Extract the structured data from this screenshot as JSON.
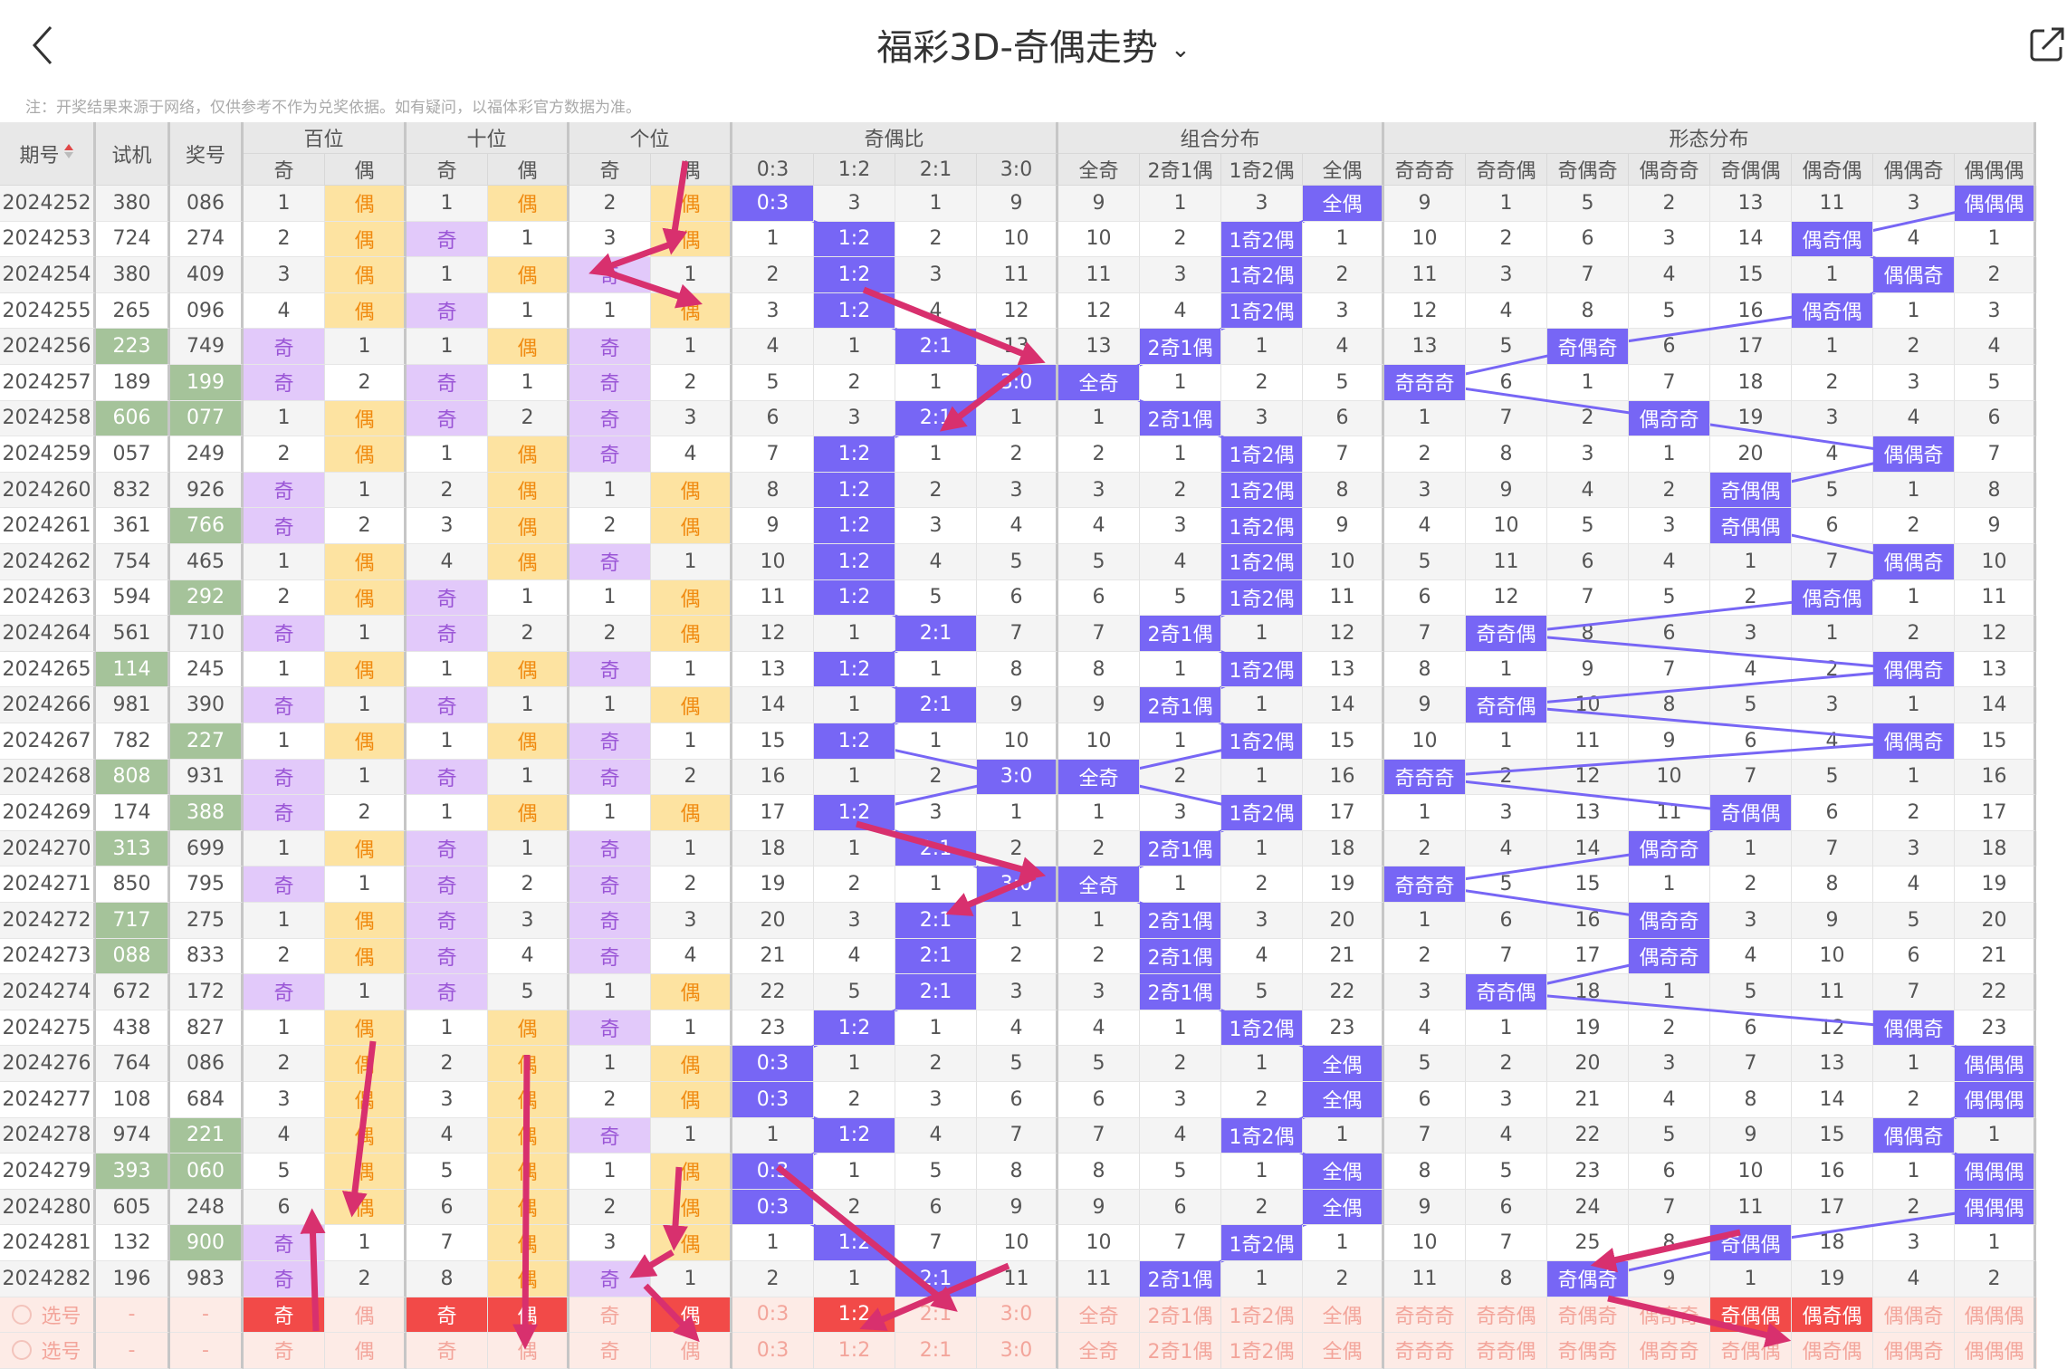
{
  "header": {
    "title": "福彩3D-奇偶走势",
    "note": "注：开奖结果来源于网络，仅供参考不作为兑奖依据。如有疑问，以福体彩官方数据为准。"
  },
  "columns": {
    "period": "期号",
    "test": "试机",
    "prize": "奖号",
    "groups": [
      "百位",
      "十位",
      "个位",
      "奇偶比",
      "组合分布",
      "形态分布"
    ],
    "sub": [
      "奇",
      "偶",
      "奇",
      "偶",
      "奇",
      "偶",
      "0:3",
      "1:2",
      "2:1",
      "3:0",
      "全奇",
      "2奇1偶",
      "1奇2偶",
      "全偶",
      "奇奇奇",
      "奇奇偶",
      "奇偶奇",
      "偶奇奇",
      "奇偶偶",
      "偶奇偶",
      "偶偶奇",
      "偶偶偶"
    ]
  },
  "colors": {
    "odd": "#e2c9fa",
    "even": "#fde3a1",
    "hit": "#7766f5",
    "green": "#a5c39a",
    "selected": "#f24a48",
    "arrow": "#d8306e"
  },
  "rows": [
    {
      "p": "2024252",
      "t": "380",
      "z": "086",
      "green": [],
      "cells": [
        "1",
        "偶",
        "1",
        "偶",
        "2",
        "偶",
        "0:3",
        "3",
        "1",
        "9",
        "9",
        "1",
        "3",
        "全偶",
        "9",
        "1",
        "5",
        "2",
        "13",
        "11",
        "3",
        "偶偶偶"
      ]
    },
    {
      "p": "2024253",
      "t": "724",
      "z": "274",
      "green": [],
      "cells": [
        "2",
        "偶",
        "奇",
        "1",
        "3",
        "偶",
        "1",
        "1:2",
        "2",
        "10",
        "10",
        "2",
        "1奇2偶",
        "1",
        "10",
        "2",
        "6",
        "3",
        "14",
        "偶奇偶",
        "4",
        "1"
      ]
    },
    {
      "p": "2024254",
      "t": "380",
      "z": "409",
      "green": [],
      "cells": [
        "3",
        "偶",
        "1",
        "偶",
        "奇",
        "1",
        "2",
        "1:2",
        "3",
        "11",
        "11",
        "3",
        "1奇2偶",
        "2",
        "11",
        "3",
        "7",
        "4",
        "15",
        "1",
        "偶偶奇",
        "2"
      ]
    },
    {
      "p": "2024255",
      "t": "265",
      "z": "096",
      "green": [],
      "cells": [
        "4",
        "偶",
        "奇",
        "1",
        "1",
        "偶",
        "3",
        "1:2",
        "4",
        "12",
        "12",
        "4",
        "1奇2偶",
        "3",
        "12",
        "4",
        "8",
        "5",
        "16",
        "偶奇偶",
        "1",
        "3"
      ]
    },
    {
      "p": "2024256",
      "t": "223",
      "z": "749",
      "green": [
        "t"
      ],
      "cells": [
        "奇",
        "1",
        "1",
        "偶",
        "奇",
        "1",
        "4",
        "1",
        "2:1",
        "13",
        "13",
        "2奇1偶",
        "1",
        "4",
        "13",
        "5",
        "奇偶奇",
        "6",
        "17",
        "1",
        "2",
        "4"
      ]
    },
    {
      "p": "2024257",
      "t": "189",
      "z": "199",
      "green": [
        "z"
      ],
      "cells": [
        "奇",
        "2",
        "奇",
        "1",
        "奇",
        "2",
        "5",
        "2",
        "1",
        "3:0",
        "全奇",
        "1",
        "2",
        "5",
        "奇奇奇",
        "6",
        "1",
        "7",
        "18",
        "2",
        "3",
        "5"
      ]
    },
    {
      "p": "2024258",
      "t": "606",
      "z": "077",
      "green": [
        "t",
        "z"
      ],
      "cells": [
        "1",
        "偶",
        "奇",
        "2",
        "奇",
        "3",
        "6",
        "3",
        "2:1",
        "1",
        "1",
        "2奇1偶",
        "3",
        "6",
        "1",
        "7",
        "2",
        "偶奇奇",
        "19",
        "3",
        "4",
        "6"
      ]
    },
    {
      "p": "2024259",
      "t": "057",
      "z": "249",
      "green": [],
      "cells": [
        "2",
        "偶",
        "1",
        "偶",
        "奇",
        "4",
        "7",
        "1:2",
        "1",
        "2",
        "2",
        "1",
        "1奇2偶",
        "7",
        "2",
        "8",
        "3",
        "1",
        "20",
        "4",
        "偶偶奇",
        "7"
      ]
    },
    {
      "p": "2024260",
      "t": "832",
      "z": "926",
      "green": [],
      "cells": [
        "奇",
        "1",
        "2",
        "偶",
        "1",
        "偶",
        "8",
        "1:2",
        "2",
        "3",
        "3",
        "2",
        "1奇2偶",
        "8",
        "3",
        "9",
        "4",
        "2",
        "奇偶偶",
        "5",
        "1",
        "8"
      ]
    },
    {
      "p": "2024261",
      "t": "361",
      "z": "766",
      "green": [
        "z"
      ],
      "cells": [
        "奇",
        "2",
        "3",
        "偶",
        "2",
        "偶",
        "9",
        "1:2",
        "3",
        "4",
        "4",
        "3",
        "1奇2偶",
        "9",
        "4",
        "10",
        "5",
        "3",
        "奇偶偶",
        "6",
        "2",
        "9"
      ]
    },
    {
      "p": "2024262",
      "t": "754",
      "z": "465",
      "green": [],
      "cells": [
        "1",
        "偶",
        "4",
        "偶",
        "奇",
        "1",
        "10",
        "1:2",
        "4",
        "5",
        "5",
        "4",
        "1奇2偶",
        "10",
        "5",
        "11",
        "6",
        "4",
        "1",
        "7",
        "偶偶奇",
        "10"
      ]
    },
    {
      "p": "2024263",
      "t": "594",
      "z": "292",
      "green": [
        "z"
      ],
      "cells": [
        "2",
        "偶",
        "奇",
        "1",
        "1",
        "偶",
        "11",
        "1:2",
        "5",
        "6",
        "6",
        "5",
        "1奇2偶",
        "11",
        "6",
        "12",
        "7",
        "5",
        "2",
        "偶奇偶",
        "1",
        "11"
      ]
    },
    {
      "p": "2024264",
      "t": "561",
      "z": "710",
      "green": [],
      "cells": [
        "奇",
        "1",
        "奇",
        "2",
        "2",
        "偶",
        "12",
        "1",
        "2:1",
        "7",
        "7",
        "2奇1偶",
        "1",
        "12",
        "7",
        "奇奇偶",
        "8",
        "6",
        "3",
        "1",
        "2",
        "12"
      ]
    },
    {
      "p": "2024265",
      "t": "114",
      "z": "245",
      "green": [
        "t"
      ],
      "cells": [
        "1",
        "偶",
        "1",
        "偶",
        "奇",
        "1",
        "13",
        "1:2",
        "1",
        "8",
        "8",
        "1",
        "1奇2偶",
        "13",
        "8",
        "1",
        "9",
        "7",
        "4",
        "2",
        "偶偶奇",
        "13"
      ]
    },
    {
      "p": "2024266",
      "t": "981",
      "z": "390",
      "green": [],
      "cells": [
        "奇",
        "1",
        "奇",
        "1",
        "1",
        "偶",
        "14",
        "1",
        "2:1",
        "9",
        "9",
        "2奇1偶",
        "1",
        "14",
        "9",
        "奇奇偶",
        "10",
        "8",
        "5",
        "3",
        "1",
        "14"
      ]
    },
    {
      "p": "2024267",
      "t": "782",
      "z": "227",
      "green": [
        "z"
      ],
      "cells": [
        "1",
        "偶",
        "1",
        "偶",
        "奇",
        "1",
        "15",
        "1:2",
        "1",
        "10",
        "10",
        "1",
        "1奇2偶",
        "15",
        "10",
        "1",
        "11",
        "9",
        "6",
        "4",
        "偶偶奇",
        "15"
      ]
    },
    {
      "p": "2024268",
      "t": "808",
      "z": "931",
      "green": [
        "t"
      ],
      "cells": [
        "奇",
        "1",
        "奇",
        "1",
        "奇",
        "2",
        "16",
        "1",
        "2",
        "3:0",
        "全奇",
        "2",
        "1",
        "16",
        "奇奇奇",
        "2",
        "12",
        "10",
        "7",
        "5",
        "1",
        "16"
      ]
    },
    {
      "p": "2024269",
      "t": "174",
      "z": "388",
      "green": [
        "z"
      ],
      "cells": [
        "奇",
        "2",
        "1",
        "偶",
        "1",
        "偶",
        "17",
        "1:2",
        "3",
        "1",
        "1",
        "3",
        "1奇2偶",
        "17",
        "1",
        "3",
        "13",
        "11",
        "奇偶偶",
        "6",
        "2",
        "17"
      ]
    },
    {
      "p": "2024270",
      "t": "313",
      "z": "699",
      "green": [
        "t"
      ],
      "cells": [
        "1",
        "偶",
        "奇",
        "1",
        "奇",
        "1",
        "18",
        "1",
        "2:1",
        "2",
        "2",
        "2奇1偶",
        "1",
        "18",
        "2",
        "4",
        "14",
        "偶奇奇",
        "1",
        "7",
        "3",
        "18"
      ]
    },
    {
      "p": "2024271",
      "t": "850",
      "z": "795",
      "green": [],
      "cells": [
        "奇",
        "1",
        "奇",
        "2",
        "奇",
        "2",
        "19",
        "2",
        "1",
        "3:0",
        "全奇",
        "1",
        "2",
        "19",
        "奇奇奇",
        "5",
        "15",
        "1",
        "2",
        "8",
        "4",
        "19"
      ]
    },
    {
      "p": "2024272",
      "t": "717",
      "z": "275",
      "green": [
        "t"
      ],
      "cells": [
        "1",
        "偶",
        "奇",
        "3",
        "奇",
        "3",
        "20",
        "3",
        "2:1",
        "1",
        "1",
        "2奇1偶",
        "3",
        "20",
        "1",
        "6",
        "16",
        "偶奇奇",
        "3",
        "9",
        "5",
        "20"
      ]
    },
    {
      "p": "2024273",
      "t": "088",
      "z": "833",
      "green": [
        "t"
      ],
      "cells": [
        "2",
        "偶",
        "奇",
        "4",
        "奇",
        "4",
        "21",
        "4",
        "2:1",
        "2",
        "2",
        "2奇1偶",
        "4",
        "21",
        "2",
        "7",
        "17",
        "偶奇奇",
        "4",
        "10",
        "6",
        "21"
      ]
    },
    {
      "p": "2024274",
      "t": "672",
      "z": "172",
      "green": [],
      "cells": [
        "奇",
        "1",
        "奇",
        "5",
        "1",
        "偶",
        "22",
        "5",
        "2:1",
        "3",
        "3",
        "2奇1偶",
        "5",
        "22",
        "3",
        "奇奇偶",
        "18",
        "1",
        "5",
        "11",
        "7",
        "22"
      ]
    },
    {
      "p": "2024275",
      "t": "438",
      "z": "827",
      "green": [],
      "cells": [
        "1",
        "偶",
        "1",
        "偶",
        "奇",
        "1",
        "23",
        "1:2",
        "1",
        "4",
        "4",
        "1",
        "1奇2偶",
        "23",
        "4",
        "1",
        "19",
        "2",
        "6",
        "12",
        "偶偶奇",
        "23"
      ]
    },
    {
      "p": "2024276",
      "t": "764",
      "z": "086",
      "green": [],
      "cells": [
        "2",
        "偶",
        "2",
        "偶",
        "1",
        "偶",
        "0:3",
        "1",
        "2",
        "5",
        "5",
        "2",
        "1",
        "全偶",
        "5",
        "2",
        "20",
        "3",
        "7",
        "13",
        "1",
        "偶偶偶"
      ]
    },
    {
      "p": "2024277",
      "t": "108",
      "z": "684",
      "green": [],
      "cells": [
        "3",
        "偶",
        "3",
        "偶",
        "2",
        "偶",
        "0:3",
        "2",
        "3",
        "6",
        "6",
        "3",
        "2",
        "全偶",
        "6",
        "3",
        "21",
        "4",
        "8",
        "14",
        "2",
        "偶偶偶"
      ]
    },
    {
      "p": "2024278",
      "t": "974",
      "z": "221",
      "green": [
        "z"
      ],
      "cells": [
        "4",
        "偶",
        "4",
        "偶",
        "奇",
        "1",
        "1",
        "1:2",
        "4",
        "7",
        "7",
        "4",
        "1奇2偶",
        "1",
        "7",
        "4",
        "22",
        "5",
        "9",
        "15",
        "偶偶奇",
        "1"
      ]
    },
    {
      "p": "2024279",
      "t": "393",
      "z": "060",
      "green": [
        "t",
        "z"
      ],
      "cells": [
        "5",
        "偶",
        "5",
        "偶",
        "1",
        "偶",
        "0:3",
        "1",
        "5",
        "8",
        "8",
        "5",
        "1",
        "全偶",
        "8",
        "5",
        "23",
        "6",
        "10",
        "16",
        "1",
        "偶偶偶"
      ]
    },
    {
      "p": "2024280",
      "t": "605",
      "z": "248",
      "green": [],
      "cells": [
        "6",
        "偶",
        "6",
        "偶",
        "2",
        "偶",
        "0:3",
        "2",
        "6",
        "9",
        "9",
        "6",
        "2",
        "全偶",
        "9",
        "6",
        "24",
        "7",
        "11",
        "17",
        "2",
        "偶偶偶"
      ]
    },
    {
      "p": "2024281",
      "t": "132",
      "z": "900",
      "green": [
        "z"
      ],
      "cells": [
        "奇",
        "1",
        "7",
        "偶",
        "3",
        "偶",
        "1",
        "1:2",
        "7",
        "10",
        "10",
        "7",
        "1奇2偶",
        "1",
        "10",
        "7",
        "25",
        "8",
        "奇偶偶",
        "18",
        "3",
        "1"
      ]
    },
    {
      "p": "2024282",
      "t": "196",
      "z": "983",
      "green": [],
      "cells": [
        "奇",
        "2",
        "8",
        "偶",
        "奇",
        "1",
        "2",
        "1",
        "2:1",
        "11",
        "11",
        "2奇1偶",
        "1",
        "2",
        "11",
        "8",
        "奇偶奇",
        "9",
        "1",
        "19",
        "4",
        "2"
      ]
    }
  ],
  "select_rows": [
    {
      "label": "选号",
      "t": "-",
      "z": "-",
      "cells": [
        "奇",
        "偶",
        "奇",
        "偶",
        "奇",
        "偶",
        "0:3",
        "1:2",
        "2:1",
        "3:0",
        "全奇",
        "2奇1偶",
        "1奇2偶",
        "全偶",
        "奇奇奇",
        "奇奇偶",
        "奇偶奇",
        "偶奇奇",
        "奇偶偶",
        "偶奇偶",
        "偶偶奇",
        "偶偶偶"
      ],
      "selected": [
        0,
        2,
        3,
        5,
        7,
        18,
        19
      ]
    },
    {
      "label": "选号",
      "t": "-",
      "z": "-",
      "cells": [
        "奇",
        "偶",
        "奇",
        "偶",
        "奇",
        "偶",
        "0:3",
        "1:2",
        "2:1",
        "3:0",
        "全奇",
        "2奇1偶",
        "1奇2偶",
        "全偶",
        "奇奇奇",
        "奇奇偶",
        "奇偶奇",
        "偶奇奇",
        "奇偶偶",
        "偶奇偶",
        "偶偶奇",
        "偶偶偶"
      ],
      "selected": []
    }
  ]
}
